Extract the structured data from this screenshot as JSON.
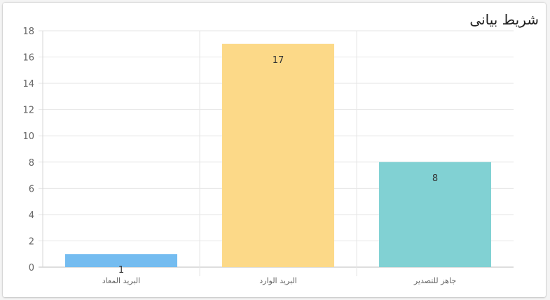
{
  "card": {
    "title": "شريط بيانى"
  },
  "chart_data": {
    "type": "bar",
    "categories": [
      "البريد المعاد",
      "البريد الوارد",
      "جاهز للتصدير"
    ],
    "values": [
      1,
      17,
      8
    ],
    "colors": [
      "#74bcf0",
      "#fcd988",
      "#81d1d3"
    ],
    "title": "",
    "xlabel": "",
    "ylabel": "",
    "ylim": [
      0,
      18
    ],
    "yticks": [
      0,
      2,
      4,
      6,
      8,
      10,
      12,
      14,
      16,
      18
    ],
    "grid": true,
    "legend": "none",
    "data_labels": [
      "1",
      "17",
      "8"
    ]
  }
}
